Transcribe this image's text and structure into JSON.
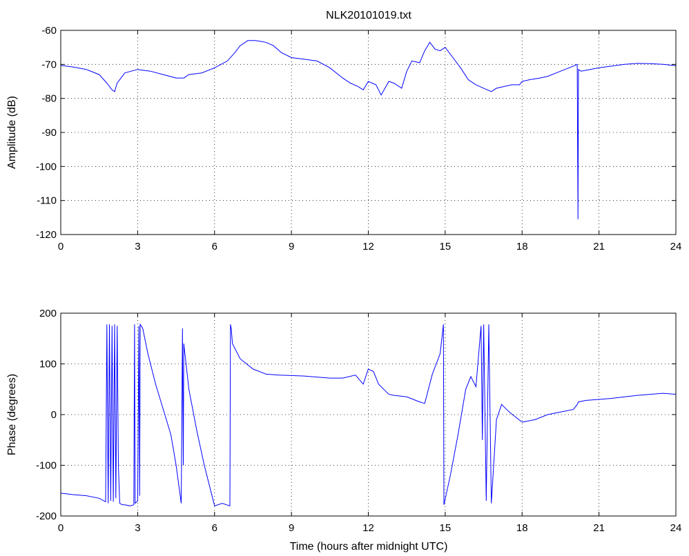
{
  "chart_data": [
    {
      "type": "line",
      "title": "NLK20101019.txt",
      "xlabel": "",
      "ylabel": "Amplitude (dB)",
      "xlim": [
        0,
        24
      ],
      "ylim": [
        -120,
        -60
      ],
      "xticks": [
        0,
        3,
        6,
        9,
        12,
        15,
        18,
        21,
        24
      ],
      "yticks": [
        -120,
        -110,
        -100,
        -90,
        -80,
        -70,
        -60
      ],
      "grid": true,
      "color": "#0000ff",
      "series": [
        {
          "x": [
            0,
            0.5,
            1.0,
            1.5,
            1.8,
            2.0,
            2.1,
            2.2,
            2.5,
            3.0,
            3.5,
            4.0,
            4.5,
            4.8,
            5.0,
            5.5,
            6.0,
            6.5,
            6.8,
            7.0,
            7.3,
            7.6,
            8.0,
            8.3,
            8.6,
            9.0,
            9.5,
            10.0,
            10.5,
            11.0,
            11.3,
            11.6,
            11.8,
            12.0,
            12.3,
            12.5,
            12.8,
            13.0,
            13.3,
            13.5,
            13.7,
            14.0,
            14.2,
            14.4,
            14.6,
            14.8,
            15.0,
            15.3,
            15.6,
            15.9,
            16.2,
            16.5,
            16.8,
            17.0,
            17.3,
            17.6,
            17.9,
            18.0,
            18.3,
            18.7,
            19.0,
            19.5,
            20.0,
            20.15,
            20.18,
            20.2,
            20.3,
            21.0,
            21.5,
            22.0,
            22.5,
            23.0,
            23.5,
            24.0
          ],
          "y": [
            -70.3,
            -70.8,
            -71.5,
            -73.0,
            -75.5,
            -77.5,
            -78.0,
            -75.5,
            -72.5,
            -71.5,
            -72.0,
            -73.0,
            -74.0,
            -74.0,
            -73.0,
            -72.5,
            -71.0,
            -69.0,
            -66.5,
            -64.5,
            -63.0,
            -63.0,
            -63.5,
            -64.5,
            -66.5,
            -68.0,
            -68.5,
            -69.0,
            -71.0,
            -74.0,
            -75.5,
            -76.5,
            -77.5,
            -75.0,
            -76.0,
            -79.0,
            -75.0,
            -75.5,
            -77.0,
            -72.0,
            -69.0,
            -69.5,
            -66.0,
            -63.5,
            -65.5,
            -66.0,
            -65.0,
            -68.0,
            -71.0,
            -74.5,
            -76.0,
            -77.0,
            -78.0,
            -77.0,
            -76.5,
            -76.0,
            -76.0,
            -75.0,
            -74.5,
            -74.0,
            -73.5,
            -72.0,
            -70.5,
            -70.0,
            -115.5,
            -71.5,
            -72.0,
            -71.0,
            -70.5,
            -70.0,
            -69.7,
            -69.8,
            -70.0,
            -70.4
          ]
        }
      ]
    },
    {
      "type": "line",
      "title": "",
      "xlabel": "Time (hours after midnight UTC)",
      "ylabel": "Phase (degrees)",
      "xlim": [
        0,
        24
      ],
      "ylim": [
        -200,
        200
      ],
      "xticks": [
        0,
        3,
        6,
        9,
        12,
        15,
        18,
        21,
        24
      ],
      "yticks": [
        -200,
        -100,
        0,
        100,
        200
      ],
      "grid": true,
      "color": "#0000ff",
      "series": [
        {
          "x": [
            0,
            0.5,
            1.0,
            1.5,
            1.75,
            1.8,
            1.85,
            1.9,
            1.95,
            2.0,
            2.05,
            2.1,
            2.15,
            2.2,
            2.25,
            2.3,
            2.4,
            2.5,
            2.7,
            2.85,
            2.88,
            2.9,
            3.0,
            3.05,
            3.08,
            3.1,
            3.2,
            3.4,
            3.7,
            4.0,
            4.3,
            4.5,
            4.7,
            4.75,
            4.78,
            4.8,
            5.0,
            5.3,
            5.6,
            6.0,
            6.3,
            6.6,
            6.62,
            6.65,
            6.7,
            7.0,
            7.5,
            8.0,
            8.5,
            9.0,
            9.5,
            10.0,
            10.5,
            11.0,
            11.5,
            11.8,
            12.0,
            12.2,
            12.4,
            12.6,
            12.8,
            13.0,
            13.5,
            14.0,
            14.2,
            14.5,
            14.8,
            14.93,
            14.95,
            15.2,
            15.5,
            15.8,
            16.0,
            16.2,
            16.4,
            16.45,
            16.5,
            16.6,
            16.7,
            16.8,
            17.0,
            17.2,
            17.5,
            18.0,
            18.5,
            19.0,
            19.5,
            20.0,
            20.15,
            20.2,
            20.5,
            21.0,
            21.5,
            22.0,
            22.5,
            23.0,
            23.5,
            24.0
          ],
          "y": [
            -155,
            -158,
            -160,
            -165,
            -172,
            178,
            -175,
            178,
            -170,
            175,
            -172,
            178,
            -165,
            175,
            -100,
            -175,
            -178,
            -178,
            -180,
            -178,
            178,
            -175,
            -170,
            175,
            -160,
            178,
            170,
            120,
            60,
            10,
            -40,
            -100,
            -175,
            170,
            -100,
            140,
            50,
            -30,
            -100,
            -180,
            -175,
            -180,
            178,
            170,
            140,
            110,
            90,
            80,
            78,
            77,
            76,
            74,
            72,
            72,
            78,
            60,
            90,
            85,
            60,
            50,
            40,
            38,
            35,
            25,
            22,
            80,
            120,
            178,
            -178,
            -120,
            -40,
            50,
            75,
            55,
            175,
            -50,
            178,
            -170,
            178,
            -175,
            -10,
            20,
            5,
            -15,
            -10,
            0,
            5,
            10,
            20,
            25,
            28,
            30,
            32,
            35,
            38,
            40,
            42,
            40
          ]
        }
      ]
    }
  ]
}
